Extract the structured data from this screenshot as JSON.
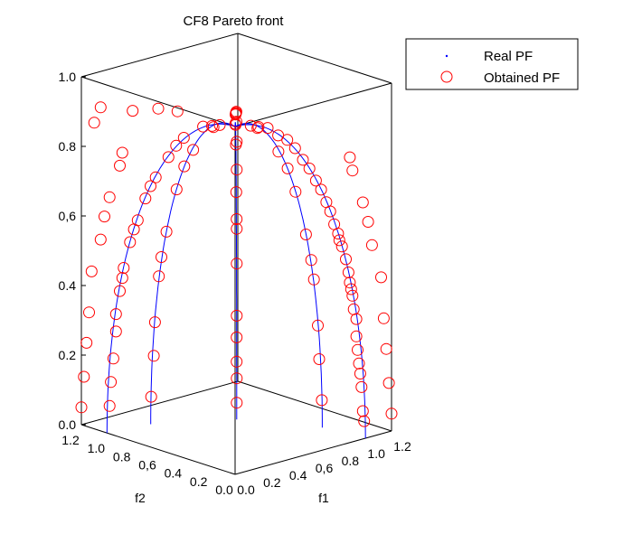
{
  "chart_data": {
    "type": "scatter",
    "projection": "3d",
    "title": "CF8 Pareto front",
    "xlabel": "f1",
    "ylabel": "f2",
    "zlabel": "",
    "xlim": [
      0,
      1.2
    ],
    "ylim": [
      0,
      1.2
    ],
    "zlim": [
      0,
      1
    ],
    "x_ticks": [
      "0.0",
      "0.2",
      "0.4",
      "0,6",
      "0.8",
      "1.0",
      "1.2"
    ],
    "y_ticks": [
      "0.0",
      "0.2",
      "0.4",
      "0,6",
      "0.8",
      "1.0",
      "1.2"
    ],
    "z_ticks": [
      "0.0",
      "0.2",
      "0.4",
      "0,6",
      "0.8",
      "1.0"
    ],
    "grid": false,
    "legend_position": "top-right",
    "series": [
      {
        "name": "Real PF",
        "style": "line",
        "color": "#0000ff",
        "curves": [
          {
            "azimuth_deg": 0
          },
          {
            "azimuth_deg": 17
          },
          {
            "azimuth_deg": 73
          },
          {
            "azimuth_deg": 90
          },
          {
            "azimuth_deg": 45
          }
        ]
      },
      {
        "name": "Obtained PF",
        "style": "marker",
        "marker": "circle-open",
        "color": "#ff0000",
        "points": [
          [
            0.98,
            0.0,
            0.08
          ],
          [
            0.95,
            0.0,
            0.22
          ],
          [
            0.93,
            0.0,
            0.35
          ],
          [
            0.9,
            0.0,
            0.42
          ],
          [
            0.87,
            0.0,
            0.49
          ],
          [
            0.82,
            0.0,
            0.57
          ],
          [
            0.76,
            0.0,
            0.64
          ],
          [
            0.7,
            0.0,
            0.71
          ],
          [
            0.62,
            0.0,
            0.78
          ],
          [
            0.52,
            0.0,
            0.85
          ],
          [
            0.4,
            0.0,
            0.92
          ],
          [
            0.25,
            0.0,
            0.97
          ],
          [
            0.12,
            0.0,
            0.99
          ],
          [
            0.97,
            0.0,
            0.15
          ],
          [
            0.96,
            0.0,
            0.19
          ],
          [
            0.93,
            0.0,
            0.3
          ],
          [
            0.91,
            0.0,
            0.38
          ],
          [
            0.88,
            0.0,
            0.46
          ],
          [
            0.85,
            0.0,
            0.53
          ],
          [
            0.79,
            0.0,
            0.61
          ],
          [
            0.73,
            0.0,
            0.68
          ],
          [
            0.66,
            0.0,
            0.75
          ],
          [
            0.57,
            0.0,
            0.82
          ],
          [
            0.46,
            0.0,
            0.89
          ],
          [
            0.33,
            0.0,
            0.94
          ],
          [
            0.18,
            0.0,
            0.98
          ],
          [
            0.99,
            0.0,
            0.05
          ],
          [
            0.94,
            0.0,
            0.26
          ],
          [
            0.89,
            0.0,
            0.44
          ],
          [
            0.8,
            0.0,
            0.59
          ],
          [
            0.0,
            0.98,
            0.08
          ],
          [
            0.0,
            0.95,
            0.22
          ],
          [
            0.0,
            0.93,
            0.35
          ],
          [
            0.0,
            0.9,
            0.42
          ],
          [
            0.0,
            0.87,
            0.49
          ],
          [
            0.0,
            0.82,
            0.57
          ],
          [
            0.0,
            0.76,
            0.64
          ],
          [
            0.0,
            0.7,
            0.71
          ],
          [
            0.0,
            0.62,
            0.78
          ],
          [
            0.0,
            0.52,
            0.85
          ],
          [
            0.0,
            0.4,
            0.92
          ],
          [
            0.0,
            0.25,
            0.97
          ],
          [
            0.0,
            0.12,
            0.99
          ],
          [
            0.0,
            0.97,
            0.15
          ],
          [
            0.0,
            0.93,
            0.3
          ],
          [
            0.0,
            0.88,
            0.46
          ],
          [
            0.0,
            0.79,
            0.61
          ],
          [
            0.0,
            0.66,
            0.75
          ],
          [
            0.0,
            0.46,
            0.89
          ],
          [
            0.0,
            0.18,
            0.98
          ],
          [
            0.95,
            0.29,
            0.08
          ],
          [
            0.91,
            0.28,
            0.3
          ],
          [
            0.86,
            0.26,
            0.44
          ],
          [
            0.78,
            0.24,
            0.58
          ],
          [
            0.66,
            0.2,
            0.72
          ],
          [
            0.48,
            0.15,
            0.86
          ],
          [
            0.25,
            0.08,
            0.96
          ],
          [
            0.93,
            0.29,
            0.2
          ],
          [
            0.83,
            0.25,
            0.5
          ],
          [
            0.57,
            0.17,
            0.8
          ],
          [
            0.29,
            0.95,
            0.08
          ],
          [
            0.28,
            0.91,
            0.3
          ],
          [
            0.26,
            0.86,
            0.44
          ],
          [
            0.24,
            0.78,
            0.58
          ],
          [
            0.2,
            0.66,
            0.72
          ],
          [
            0.15,
            0.48,
            0.86
          ],
          [
            0.08,
            0.25,
            0.96
          ],
          [
            0.29,
            0.93,
            0.2
          ],
          [
            0.25,
            0.83,
            0.5
          ],
          [
            0.17,
            0.57,
            0.8
          ],
          [
            0.7,
            0.7,
            0.05
          ],
          [
            0.7,
            0.7,
            0.12
          ],
          [
            0.69,
            0.69,
            0.17
          ],
          [
            0.7,
            0.7,
            0.3
          ],
          [
            0.7,
            0.7,
            0.45
          ],
          [
            0.7,
            0.7,
            0.55
          ],
          [
            0.69,
            0.69,
            0.58
          ],
          [
            0.7,
            0.7,
            0.72
          ],
          [
            0.7,
            0.7,
            0.8
          ],
          [
            0.69,
            0.69,
            0.24
          ],
          [
            0.5,
            0.5,
            0.7
          ],
          [
            0.35,
            0.35,
            0.87
          ],
          [
            0.2,
            0.2,
            0.96
          ],
          [
            0.08,
            0.08,
            0.99
          ],
          [
            1.2,
            0.0,
            0.05
          ],
          [
            1.18,
            0.0,
            0.14
          ],
          [
            1.16,
            0.0,
            0.24
          ],
          [
            1.14,
            0.0,
            0.33
          ],
          [
            1.05,
            0.0,
            0.55
          ],
          [
            1.02,
            0.0,
            0.62
          ],
          [
            0.98,
            0.0,
            0.68
          ],
          [
            0.9,
            0.0,
            0.78
          ],
          [
            0.88,
            0.0,
            0.82
          ],
          [
            1.12,
            0.0,
            0.45
          ],
          [
            0.0,
            1.2,
            0.05
          ],
          [
            0.0,
            1.18,
            0.14
          ],
          [
            0.0,
            1.16,
            0.24
          ],
          [
            0.0,
            1.14,
            0.33
          ],
          [
            0.0,
            1.05,
            0.55
          ],
          [
            0.0,
            1.02,
            0.62
          ],
          [
            0.0,
            0.98,
            0.68
          ],
          [
            0.0,
            0.9,
            0.78
          ],
          [
            0.0,
            1.12,
            0.45
          ],
          [
            0.0,
            1.1,
            0.88
          ],
          [
            0.0,
            1.05,
            0.93
          ],
          [
            0.0,
            0.88,
            0.82
          ],
          [
            0.0,
            0.8,
            0.95
          ],
          [
            0.0,
            0.6,
            0.98
          ],
          [
            0.0,
            0.45,
            0.99
          ],
          [
            0.6,
            0.6,
            0.88
          ],
          [
            0.55,
            0.55,
            0.92
          ],
          [
            0.4,
            0.4,
            0.95
          ],
          [
            0.3,
            0.3,
            0.97
          ],
          [
            0.2,
            0.2,
            0.99
          ]
        ]
      }
    ]
  }
}
